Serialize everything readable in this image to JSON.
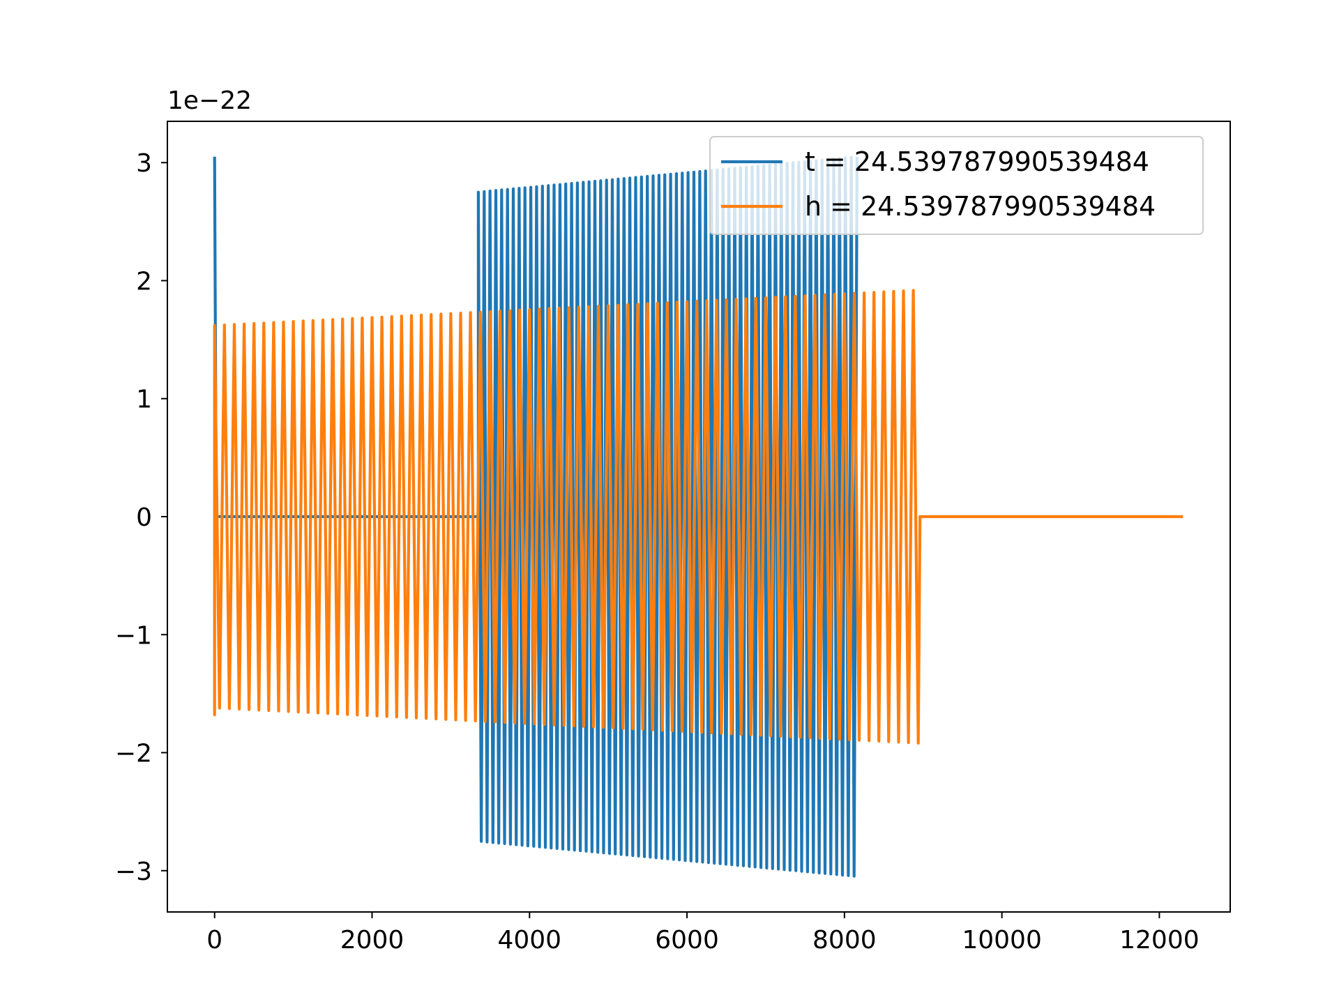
{
  "chart_data": {
    "type": "line",
    "title": "",
    "xlabel": "",
    "ylabel": "",
    "y_offset_label": "1e−22",
    "xlim": [
      -600,
      12900
    ],
    "ylim": [
      -3.35,
      3.35
    ],
    "x_ticks": [
      0,
      2000,
      4000,
      6000,
      8000,
      10000,
      12000
    ],
    "x_tick_labels": [
      "0",
      "2000",
      "4000",
      "6000",
      "8000",
      "10000",
      "12000"
    ],
    "y_ticks": [
      -3,
      -2,
      -1,
      0,
      1,
      2,
      3
    ],
    "y_tick_labels": [
      "−3",
      "−2",
      "−1",
      "0",
      "1",
      "2",
      "3"
    ],
    "grid": false,
    "legend_placement": "upper right",
    "series": [
      {
        "name": "t = 24.539787990539484",
        "color": "#1f77b4",
        "spike": {
          "x": 0,
          "y": 3.05
        },
        "flat_range": [
          20,
          3350
        ],
        "burst": {
          "x_start": 3350,
          "x_end": 8180,
          "period": 74,
          "amp_start": 2.75,
          "amp_end": 3.05
        }
      },
      {
        "name": "h = 24.539787990539484",
        "color": "#ff7f0e",
        "start": {
          "x": 0,
          "y_values": [
            -0.67,
            -1.68
          ]
        },
        "burst": {
          "x_start": 0,
          "x_end": 8960,
          "period": 125,
          "amp_start": 1.62,
          "amp_end": 1.92
        },
        "tail": {
          "x_start": 8960,
          "x_end": 12300,
          "y": 0
        }
      }
    ]
  }
}
